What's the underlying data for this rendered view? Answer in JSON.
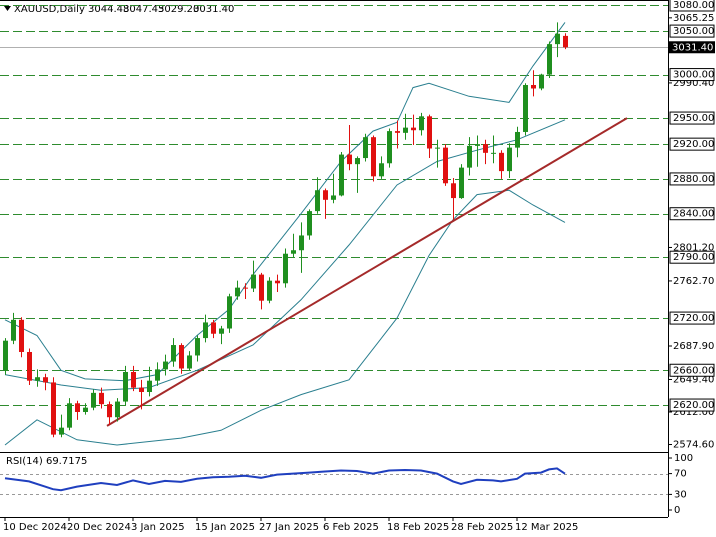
{
  "chart_data": {
    "type": "candlestick",
    "header": {
      "symbol": "XAUUSD,Daily",
      "ohlc_labels": [
        "3044.48",
        "3047.45",
        "3029.20",
        "3031.40"
      ]
    },
    "categories": [
      "10 Dec 2024",
      null,
      null,
      null,
      null,
      null,
      null,
      null,
      "20 Dec 2024",
      null,
      null,
      null,
      null,
      null,
      null,
      null,
      "3 Jan 2025",
      null,
      null,
      null,
      null,
      null,
      null,
      null,
      "15 Jan 2025",
      null,
      null,
      null,
      null,
      null,
      null,
      null,
      "27 Jan 2025",
      null,
      null,
      null,
      null,
      null,
      null,
      null,
      "6 Feb 2025",
      null,
      null,
      null,
      null,
      null,
      null,
      null,
      "18 Feb 2025",
      null,
      null,
      null,
      null,
      null,
      null,
      null,
      "28 Feb 2025",
      null,
      null,
      null,
      null,
      null,
      null,
      null,
      "12 Mar 2025",
      null,
      null,
      null,
      null,
      null,
      null
    ],
    "open": [
      2660,
      2694,
      2718,
      2681,
      2648,
      2652,
      2646,
      2586,
      2594,
      2622,
      2612,
      2617,
      2634,
      2621,
      2606,
      2624,
      2658,
      2640,
      2635,
      2648,
      2661,
      2670,
      2689,
      2662,
      2677,
      2697,
      2715,
      2702,
      2708,
      2745,
      2755,
      2754,
      2770,
      2740,
      2763,
      2760,
      2794,
      2798,
      2815,
      2843,
      2867,
      2856,
      2861,
      2908,
      2897,
      2904,
      2928,
      2883,
      2898,
      2935,
      2933,
      2939,
      2936,
      2952,
      2915,
      2916,
      2875,
      2858,
      2893,
      2918,
      2920,
      2910,
      2910,
      2889,
      2916,
      2934,
      2988,
      2984,
      3000,
      3035,
      3044.48
    ],
    "high": [
      2697,
      2726,
      2721,
      2685,
      2661,
      2656,
      2652,
      2609,
      2628,
      2625,
      2622,
      2638,
      2640,
      2624,
      2628,
      2665,
      2665,
      2649,
      2664,
      2669,
      2678,
      2697,
      2691,
      2682,
      2700,
      2724,
      2718,
      2711,
      2748,
      2763,
      2760,
      2786,
      2772,
      2767,
      2770,
      2800,
      2817,
      2830,
      2845,
      2882,
      2869,
      2886,
      2911,
      2942,
      2906,
      2932,
      2930,
      2906,
      2938,
      2947,
      2955,
      2954,
      2956,
      2954,
      2925,
      2920,
      2881,
      2897,
      2928,
      2930,
      2925,
      2930,
      2913,
      2921,
      2940,
      2990,
      3005,
      3001,
      3038,
      3060,
      3047.45
    ],
    "low": [
      2655,
      2690,
      2675,
      2643,
      2641,
      2637,
      2583,
      2583,
      2591,
      2603,
      2609,
      2614,
      2616,
      2597,
      2601,
      2620,
      2636,
      2615,
      2630,
      2642,
      2654,
      2664,
      2656,
      2660,
      2670,
      2692,
      2697,
      2690,
      2703,
      2741,
      2742,
      2750,
      2730,
      2737,
      2750,
      2755,
      2790,
      2772,
      2810,
      2840,
      2834,
      2852,
      2860,
      2890,
      2864,
      2900,
      2877,
      2880,
      2893,
      2915,
      2925,
      2919,
      2930,
      2904,
      2893,
      2872,
      2833,
      2857,
      2884,
      2894,
      2897,
      2898,
      2880,
      2881,
      2905,
      2930,
      2975,
      2982,
      2996,
      3020,
      3029.2
    ],
    "close": [
      2694,
      2718,
      2681,
      2648,
      2652,
      2646,
      2586,
      2594,
      2622,
      2612,
      2617,
      2634,
      2621,
      2606,
      2624,
      2658,
      2640,
      2635,
      2648,
      2661,
      2670,
      2689,
      2662,
      2677,
      2697,
      2715,
      2702,
      2708,
      2745,
      2755,
      2754,
      2770,
      2740,
      2763,
      2760,
      2794,
      2798,
      2815,
      2843,
      2867,
      2856,
      2861,
      2908,
      2897,
      2904,
      2928,
      2883,
      2898,
      2935,
      2933,
      2939,
      2936,
      2952,
      2915,
      2916,
      2875,
      2858,
      2893,
      2918,
      2920,
      2910,
      2910,
      2889,
      2916,
      2934,
      2988,
      2984,
      3000,
      3035,
      3047,
      3031.4
    ],
    "up_color": "#1f8f1f",
    "down_color": "#e01010",
    "xlim": [
      -0.625,
      82.875
    ],
    "ylim": [
      2566,
      3085.75
    ],
    "yticks": [
      3065.25,
      {
        "value": 2990.4,
        "label": "2990.40"
      },
      {
        "value": 2801.2,
        "label": "2801.20"
      },
      {
        "value": 2762.7,
        "label": "2762.70"
      },
      {
        "value": 2687.9,
        "label": "2687.90"
      },
      {
        "value": 2649.4,
        "label": "2649.40"
      },
      {
        "value": 2612,
        "label": "2612.00"
      },
      {
        "value": 2574.6,
        "label": "2574.60"
      }
    ],
    "levels": [
      {
        "value": 3080,
        "label": "3080.00"
      },
      {
        "value": 3050,
        "label": "3050.00"
      },
      {
        "value": 3000,
        "label": "3000.00"
      },
      {
        "value": 2950,
        "label": "2950.00"
      },
      {
        "value": 2920,
        "label": "2920.00"
      },
      {
        "value": 2880,
        "label": "2880.00"
      },
      {
        "value": 2840,
        "label": "2840.00"
      },
      {
        "value": 2790,
        "label": "2790.00"
      },
      {
        "value": 2720,
        "label": "2720.00"
      },
      {
        "value": 2660,
        "label": "2660.00"
      },
      {
        "value": 2620,
        "label": "2620.00"
      }
    ],
    "level_color": "#2e8b2e",
    "current_price": {
      "value": 3031.4,
      "label": "3031.40"
    },
    "overlays": [
      {
        "color": "#2a7f8f",
        "x": [
          0,
          4,
          7,
          10,
          15,
          19,
          24,
          28,
          31,
          37,
          42,
          46,
          49,
          51,
          53,
          58,
          63,
          66,
          70
        ],
        "values": [
          2718,
          2700,
          2660,
          2650,
          2648,
          2655,
          2700,
          2730,
          2770,
          2840,
          2900,
          2935,
          2945,
          2985,
          2990,
          2975,
          2968,
          3010,
          3060
        ]
      },
      {
        "color": "#2a7f8f",
        "x": [
          0,
          7,
          12,
          18,
          24,
          31,
          37,
          43,
          49,
          54,
          59,
          64,
          70
        ],
        "values": [
          2655,
          2643,
          2637,
          2640,
          2660,
          2689,
          2741,
          2804,
          2873,
          2900,
          2913,
          2925,
          2948
        ]
      },
      {
        "color": "#2a7f8f",
        "x": [
          0,
          4,
          9,
          14,
          22,
          27,
          32,
          37,
          43,
          49,
          53,
          56,
          59,
          63,
          66,
          70
        ],
        "values": [
          2574,
          2603,
          2580,
          2574,
          2582,
          2591,
          2614,
          2632,
          2649,
          2720,
          2792,
          2833,
          2862,
          2867,
          2850,
          2830
        ]
      },
      {
        "color": "#a52a2a",
        "x": [
          12.75,
          77.75
        ],
        "values": [
          2596,
          2950
        ]
      }
    ],
    "rsi": {
      "title": "RSI(14) 69.7175",
      "color": "#1f3fbf",
      "ylim": [
        0,
        100
      ],
      "yticks": [
        100,
        70,
        30,
        0
      ],
      "levels": [
        70,
        30
      ],
      "x": [
        0,
        3,
        5,
        6,
        7,
        9,
        12,
        14,
        16,
        18,
        20,
        22,
        24,
        26,
        28,
        30,
        32,
        34,
        36,
        38,
        40,
        42,
        44,
        46,
        48,
        50,
        52,
        54,
        56,
        57,
        59,
        61,
        62,
        64,
        65,
        67,
        68,
        69,
        70
      ],
      "values": [
        61,
        55,
        45,
        40,
        38,
        45,
        52,
        48,
        57,
        50,
        56,
        54,
        60,
        63,
        64,
        66,
        62,
        68,
        70,
        72,
        74,
        76,
        75,
        70,
        76,
        77,
        76,
        70,
        55,
        50,
        58,
        57,
        55,
        60,
        70,
        72,
        78,
        80,
        69.7175
      ]
    }
  }
}
